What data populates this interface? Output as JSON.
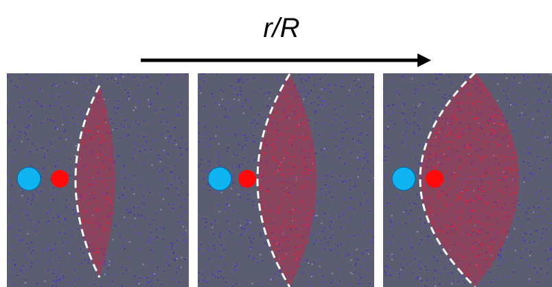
{
  "header": {
    "label": "r/R"
  }
}
